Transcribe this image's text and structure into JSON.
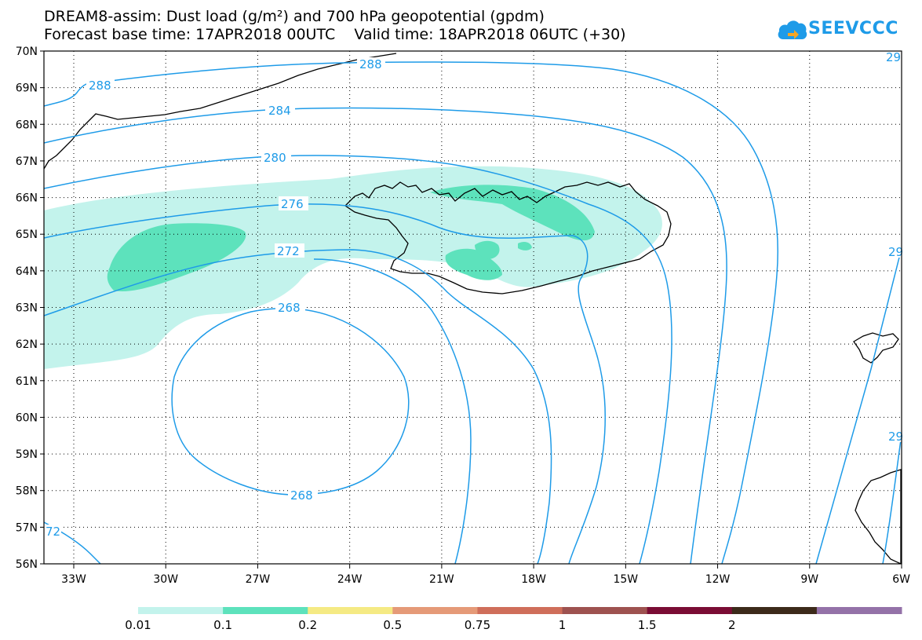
{
  "header": {
    "title_line1": "DREAM8-assim: Dust load (g/m²) and 700 hPa geopotential (gpdm)",
    "title_line2": "Forecast base time: 17APR2018 00UTC    Valid time: 18APR2018 06UTC (+30)"
  },
  "logo": {
    "text": "SEEVCCC"
  },
  "map": {
    "lat_labels": [
      "70N",
      "69N",
      "68N",
      "67N",
      "66N",
      "65N",
      "64N",
      "63N",
      "62N",
      "61N",
      "60N",
      "59N",
      "58N",
      "57N",
      "56N"
    ],
    "lon_labels": [
      "33W",
      "30W",
      "27W",
      "24W",
      "21W",
      "18W",
      "15W",
      "12W",
      "9W",
      "6W"
    ],
    "contour_labels": {
      "c288a": "288",
      "c288b": "288",
      "c284": "284",
      "c280": "280",
      "c276": "276",
      "c272": "272",
      "c268a": "268",
      "c268b": "268",
      "c72": "72",
      "c29a": "29",
      "c29b": "29",
      "c29c": "29"
    },
    "contour_color": "#1e9be8",
    "dust_colors": {
      "light": "#c3f3ec",
      "medium": "#5de2bc"
    }
  },
  "legend": {
    "colors": [
      "#c3f3ec",
      "#5de2bc",
      "#f5ea84",
      "#e59a78",
      "#cf6e5a",
      "#9e5250",
      "#7a0c34",
      "#3c2a1a",
      "#9472a8"
    ],
    "labels": [
      "0.01",
      "0.1",
      "0.2",
      "0.5",
      "0.75",
      "1",
      "1.5",
      "2"
    ]
  }
}
